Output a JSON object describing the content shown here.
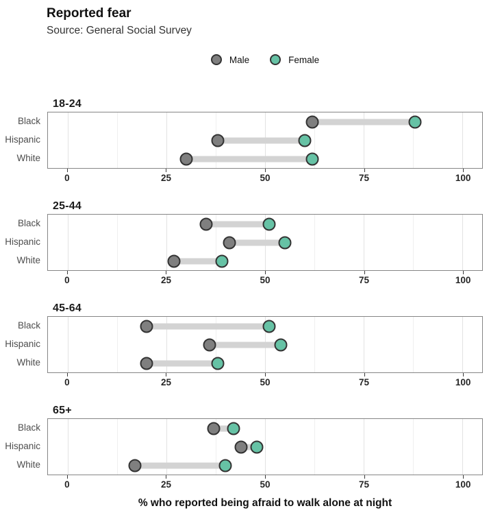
{
  "header": {
    "title": "Reported fear",
    "subtitle": "Source: General Social Survey"
  },
  "legend": {
    "items": [
      {
        "label": "Male",
        "color": "#7f7f7f"
      },
      {
        "label": "Female",
        "color": "#66c2a5"
      }
    ]
  },
  "axis": {
    "ticks": [
      0,
      25,
      50,
      75,
      100
    ],
    "label": "% who reported being afraid to walk alone at night"
  },
  "chart_data": {
    "type": "scatter",
    "variant": "dumbbell",
    "title": "Reported fear",
    "subtitle": "Source: General Social Survey",
    "xlabel": "% who reported being afraid to walk alone at night",
    "xlim": [
      -5,
      105
    ],
    "x_major_ticks": [
      0,
      25,
      50,
      75,
      100
    ],
    "x_minor_gridlines": [
      12.5,
      37.5,
      62.5,
      87.5
    ],
    "grid": "vertical-only",
    "legend_position": "top-center",
    "series": [
      {
        "name": "Male",
        "color": "#7f7f7f"
      },
      {
        "name": "Female",
        "color": "#66c2a5"
      }
    ],
    "connector_color": "#d3d3d3",
    "marker_outline": "#333333",
    "facets": [
      {
        "age_group": "18-24",
        "rows": [
          {
            "category": "Black",
            "Male": 62,
            "Female": 88
          },
          {
            "category": "Hispanic",
            "Male": 38,
            "Female": 60
          },
          {
            "category": "White",
            "Male": 30,
            "Female": 62
          }
        ]
      },
      {
        "age_group": "25-44",
        "rows": [
          {
            "category": "Black",
            "Male": 35,
            "Female": 51
          },
          {
            "category": "Hispanic",
            "Male": 41,
            "Female": 55
          },
          {
            "category": "White",
            "Male": 27,
            "Female": 39
          }
        ]
      },
      {
        "age_group": "45-64",
        "rows": [
          {
            "category": "Black",
            "Male": 20,
            "Female": 51
          },
          {
            "category": "Hispanic",
            "Male": 36,
            "Female": 54
          },
          {
            "category": "White",
            "Male": 20,
            "Female": 38
          }
        ]
      },
      {
        "age_group": "65+",
        "rows": [
          {
            "category": "Black",
            "Male": 37,
            "Female": 42
          },
          {
            "category": "Hispanic",
            "Male": 44,
            "Female": 48
          },
          {
            "category": "White",
            "Male": 17,
            "Female": 40
          }
        ]
      }
    ]
  }
}
